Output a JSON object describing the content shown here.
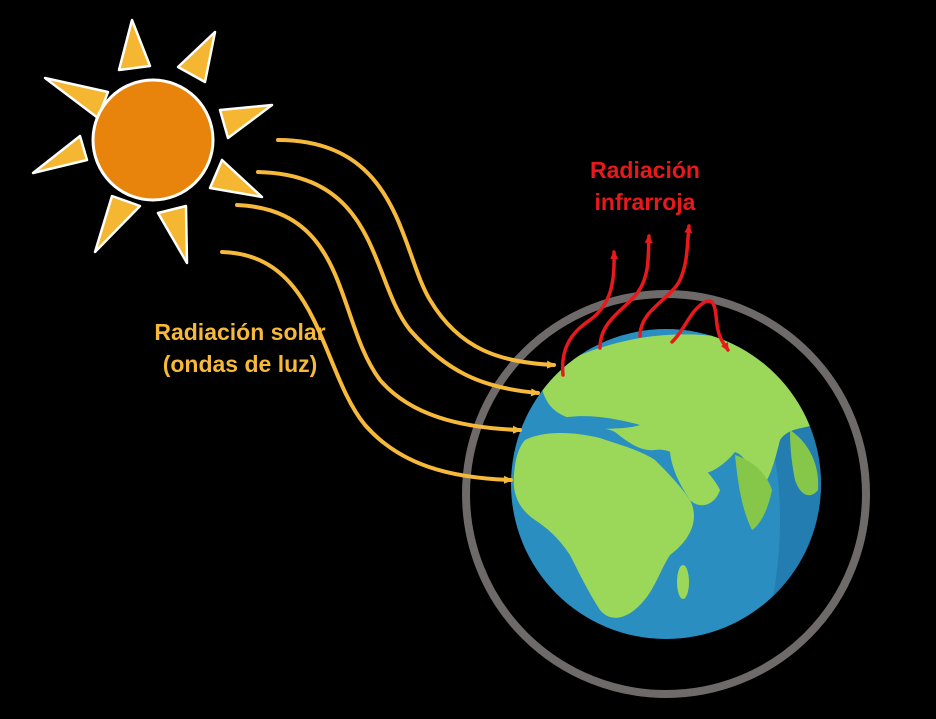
{
  "labels": {
    "solar_line1": "Radiación solar",
    "solar_line2": "(ondas de luz)",
    "infrared_line1": "Radiación",
    "infrared_line2": "infrarroja"
  },
  "colors": {
    "background": "#000000",
    "sun_core": "#e8830c",
    "sun_rays": "#f5b731",
    "solar_arrows": "#f6b93a",
    "infrared_arrows": "#e8191c",
    "atmosphere_ring": "#6e6a6a",
    "ocean": "#2a8fc0",
    "ocean_shadow": "#1f6fa3",
    "land": "#9bd85a",
    "land_shadow": "#86c74a"
  },
  "icons": {
    "sun": "sun-icon",
    "earth": "earth-globe-icon"
  }
}
